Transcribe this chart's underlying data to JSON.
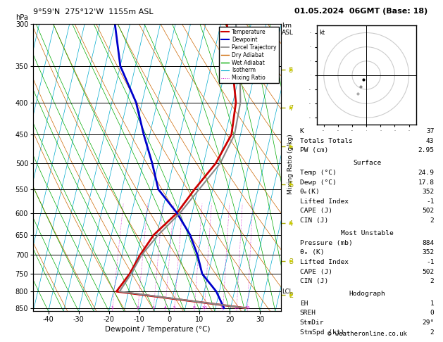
{
  "title_left": "9°59'N  275°12'W  1155m ASL",
  "title_right": "01.05.2024  06GMT (Base: 18)",
  "xlabel": "Dewpoint / Temperature (°C)",
  "ylabel_left": "hPa",
  "ylabel_right_km": "km\nASL",
  "ylabel_right_mix": "Mixing Ratio (g/kg)",
  "pressure_levels": [
    300,
    350,
    400,
    450,
    500,
    550,
    600,
    650,
    700,
    750,
    800,
    850
  ],
  "xlim": [
    -45,
    37
  ],
  "bg_color": "#ffffff",
  "temp_profile": {
    "pressures": [
      300,
      350,
      400,
      450,
      500,
      550,
      600,
      650,
      700,
      750,
      800,
      850
    ],
    "temps": [
      -3.0,
      2.0,
      6.0,
      7.0,
      4.0,
      -1.0,
      -5.0,
      -11.0,
      -14.0,
      -16.0,
      -19.0,
      25.0
    ],
    "color": "#cc0000",
    "linewidth": 2.0
  },
  "dewp_profile": {
    "pressures": [
      300,
      350,
      400,
      450,
      500,
      550,
      600,
      650,
      700,
      750,
      800,
      850
    ],
    "temps": [
      -40.0,
      -35.0,
      -27.0,
      -22.0,
      -17.0,
      -13.0,
      -5.0,
      1.0,
      5.0,
      8.0,
      14.0,
      17.8
    ],
    "color": "#0000cc",
    "linewidth": 2.0
  },
  "parcel_profile": {
    "pressures": [
      300,
      350,
      400,
      450,
      500,
      550,
      600,
      650,
      700,
      750,
      800,
      850
    ],
    "temps": [
      0.0,
      4.5,
      7.5,
      8.0,
      5.5,
      0.5,
      -4.0,
      -9.5,
      -13.5,
      -15.5,
      -18.0,
      25.0
    ],
    "color": "#888888",
    "linewidth": 1.5
  },
  "isotherm_color": "#00aacc",
  "dry_adiabat_color": "#cc6600",
  "wet_adiabat_color": "#00aa00",
  "mixing_ratio_color": "#cc00cc",
  "mixing_ratios": [
    1,
    2,
    3,
    4,
    5,
    8,
    10,
    15,
    20,
    25
  ],
  "lcl_pressure": 800,
  "km_asl": {
    "pressures": [
      355,
      408,
      470,
      540,
      622,
      715,
      810
    ],
    "labels": [
      "8",
      "7",
      "6",
      "5",
      "4",
      "3",
      "2"
    ]
  },
  "stats": {
    "K": 37,
    "Totals_Totals": 43,
    "PW_cm": 2.95,
    "Surface_Temp": 24.9,
    "Surface_Dewp": 17.8,
    "Surface_theta_e": 352,
    "Surface_LI": -1,
    "Surface_CAPE": 502,
    "Surface_CIN": 2,
    "MU_Pressure": 884,
    "MU_theta_e": 352,
    "MU_LI": -1,
    "MU_CAPE": 502,
    "MU_CIN": 2,
    "EH": 1,
    "SREH": 0,
    "StmDir": "29°",
    "StmSpd": 2
  },
  "copyright": "© weatheronline.co.uk",
  "skew": 22.0
}
